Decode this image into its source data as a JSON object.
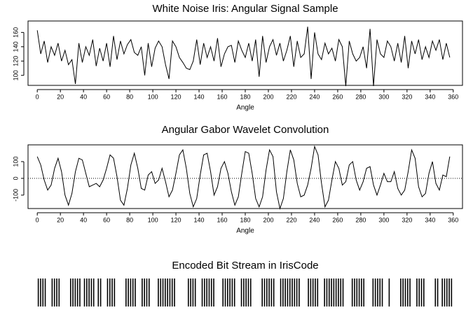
{
  "chart_data": [
    {
      "type": "line",
      "title": "White Noise Iris:  Angular Signal Sample",
      "x_label": "Angle",
      "color": "#000000",
      "x": [
        0,
        3,
        6,
        9,
        12,
        15,
        18,
        21,
        24,
        27,
        30,
        33,
        36,
        39,
        42,
        45,
        48,
        51,
        54,
        57,
        60,
        63,
        66,
        69,
        72,
        75,
        78,
        81,
        84,
        87,
        90,
        93,
        96,
        99,
        102,
        105,
        108,
        111,
        114,
        117,
        120,
        123,
        126,
        129,
        132,
        135,
        138,
        141,
        144,
        147,
        150,
        153,
        156,
        159,
        162,
        165,
        168,
        171,
        174,
        177,
        180,
        183,
        186,
        189,
        192,
        195,
        198,
        201,
        204,
        207,
        210,
        213,
        216,
        219,
        222,
        225,
        228,
        231,
        234,
        237,
        240,
        243,
        246,
        249,
        252,
        255,
        258,
        261,
        264,
        267,
        270,
        273,
        276,
        279,
        282,
        285,
        288,
        291,
        294,
        297,
        300,
        303,
        306,
        309,
        312,
        315,
        318,
        321,
        324,
        327,
        330,
        333,
        336,
        339,
        342,
        345,
        348,
        351,
        354,
        357
      ],
      "values": [
        163,
        130,
        148,
        118,
        140,
        128,
        145,
        120,
        135,
        115,
        122,
        88,
        145,
        118,
        140,
        128,
        150,
        113,
        138,
        120,
        145,
        112,
        155,
        122,
        148,
        130,
        143,
        150,
        132,
        128,
        140,
        100,
        145,
        112,
        138,
        148,
        140,
        115,
        95,
        148,
        140,
        125,
        118,
        110,
        108,
        120,
        150,
        115,
        145,
        125,
        140,
        120,
        152,
        112,
        130,
        140,
        142,
        118,
        148,
        135,
        125,
        145,
        120,
        150,
        98,
        155,
        118,
        140,
        150,
        128,
        145,
        120,
        135,
        155,
        112,
        148,
        125,
        130,
        168,
        95,
        160,
        130,
        122,
        145,
        130,
        138,
        120,
        150,
        140,
        85,
        148,
        130,
        120,
        125,
        140,
        110,
        165,
        85,
        150,
        130,
        125,
        148,
        140,
        120,
        145,
        118,
        155,
        110,
        148,
        130,
        150,
        122,
        140,
        125,
        148,
        135,
        150,
        122,
        145,
        125
      ],
      "xlim": [
        -8,
        368
      ],
      "xticks": [
        0,
        20,
        40,
        60,
        80,
        100,
        120,
        140,
        160,
        180,
        200,
        220,
        240,
        260,
        280,
        300,
        320,
        340,
        360
      ],
      "ylim": [
        86,
        176
      ],
      "yticks": [
        100,
        120,
        140,
        160
      ]
    },
    {
      "type": "line",
      "title": "Angular Gabor Wavelet Convolution",
      "x_label": "Angle",
      "color": "#000000",
      "reference_line": 0,
      "x": [
        0,
        3,
        6,
        9,
        12,
        15,
        18,
        21,
        24,
        27,
        30,
        33,
        36,
        39,
        42,
        45,
        48,
        51,
        54,
        57,
        60,
        63,
        66,
        69,
        72,
        75,
        78,
        81,
        84,
        87,
        90,
        93,
        96,
        99,
        102,
        105,
        108,
        111,
        114,
        117,
        120,
        123,
        126,
        129,
        132,
        135,
        138,
        141,
        144,
        147,
        150,
        153,
        156,
        159,
        162,
        165,
        168,
        171,
        174,
        177,
        180,
        183,
        186,
        189,
        192,
        195,
        198,
        201,
        204,
        207,
        210,
        213,
        216,
        219,
        222,
        225,
        228,
        231,
        234,
        237,
        240,
        243,
        246,
        249,
        252,
        255,
        258,
        261,
        264,
        267,
        270,
        273,
        276,
        279,
        282,
        285,
        288,
        291,
        294,
        297,
        300,
        303,
        306,
        309,
        312,
        315,
        318,
        321,
        324,
        327,
        330,
        333,
        336,
        339,
        342,
        345,
        348,
        351,
        354,
        357
      ],
      "values": [
        130,
        80,
        -10,
        -70,
        -40,
        60,
        120,
        40,
        -100,
        -160,
        -90,
        40,
        120,
        110,
        30,
        -50,
        -40,
        -30,
        -50,
        -10,
        60,
        140,
        120,
        10,
        -130,
        -160,
        -60,
        80,
        150,
        60,
        -60,
        -70,
        20,
        40,
        -30,
        -10,
        60,
        -20,
        -110,
        -70,
        30,
        140,
        170,
        60,
        -90,
        -170,
        -120,
        20,
        140,
        150,
        40,
        -100,
        -50,
        60,
        100,
        30,
        -80,
        -160,
        -110,
        30,
        160,
        150,
        30,
        -120,
        -170,
        -110,
        50,
        170,
        130,
        -80,
        -180,
        -120,
        40,
        170,
        110,
        -30,
        -110,
        -100,
        -40,
        60,
        190,
        140,
        -30,
        -170,
        -130,
        -10,
        100,
        60,
        -40,
        -20,
        80,
        100,
        -10,
        -70,
        -20,
        60,
        70,
        -40,
        -100,
        -40,
        30,
        -20,
        -20,
        40,
        -60,
        -100,
        -70,
        40,
        170,
        120,
        -50,
        -110,
        -90,
        30,
        100,
        -30,
        -70,
        20,
        10,
        130
      ],
      "xlim": [
        -8,
        368
      ],
      "xticks": [
        0,
        20,
        40,
        60,
        80,
        100,
        120,
        140,
        160,
        180,
        200,
        220,
        240,
        260,
        280,
        300,
        320,
        340,
        360
      ],
      "ylim": [
        -180,
        200
      ],
      "yticks": [
        -100,
        0,
        100
      ]
    },
    {
      "type": "barcode",
      "title": "Encoded Bit Stream in IrisCode",
      "color": "#000000",
      "values": [
        1,
        1,
        1,
        1,
        0,
        0,
        1,
        1,
        1,
        1,
        0,
        0,
        0,
        0,
        1,
        1,
        1,
        1,
        1,
        0,
        1,
        1,
        1,
        1,
        1,
        0,
        1,
        1,
        0,
        0,
        1,
        1,
        1,
        1,
        0,
        0,
        0,
        0,
        1,
        1,
        1,
        1,
        1,
        0,
        0,
        1,
        1,
        1,
        1,
        0,
        0,
        0,
        1,
        1,
        1,
        1,
        1,
        1,
        1,
        1,
        0,
        0,
        0,
        0,
        0,
        1,
        1,
        1,
        1,
        0,
        0,
        1,
        1,
        1,
        1,
        1,
        1,
        0,
        0,
        0,
        1,
        1,
        1,
        1,
        1,
        1,
        0,
        0,
        1,
        1,
        1,
        1,
        1,
        0,
        0,
        0,
        0,
        1,
        1,
        1,
        1,
        1,
        1,
        0,
        0,
        1,
        1,
        1,
        1,
        1,
        1,
        1,
        1,
        1,
        0,
        0,
        0,
        1,
        1,
        1,
        1,
        1,
        0,
        0,
        1,
        1,
        1,
        1,
        1,
        1,
        1,
        1,
        1,
        0,
        0,
        0,
        1,
        1,
        1,
        1,
        1,
        1,
        0,
        0,
        0,
        1,
        1,
        1,
        1,
        1,
        0,
        0,
        1,
        0,
        0,
        0,
        0,
        1,
        1,
        1,
        1,
        1,
        0,
        0,
        1,
        1,
        1,
        1,
        0,
        0,
        0,
        0,
        1,
        1,
        0,
        1,
        1,
        1,
        1,
        1
      ]
    }
  ]
}
